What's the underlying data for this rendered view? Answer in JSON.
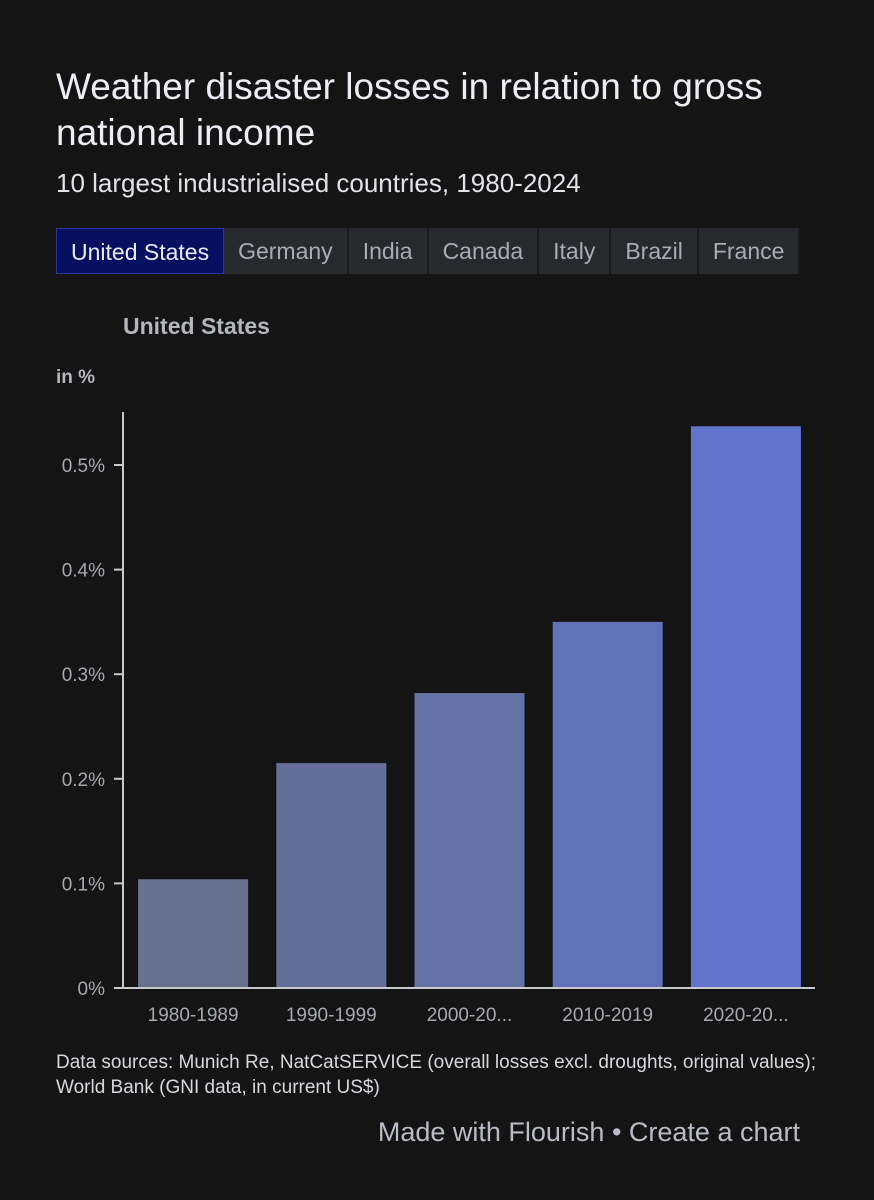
{
  "title": "Weather disaster losses in relation to gross national income",
  "subtitle": "10 largest industrialised countries, 1980-2024",
  "tabs": [
    {
      "label": "United States",
      "active": true
    },
    {
      "label": "Germany",
      "active": false
    },
    {
      "label": "India",
      "active": false
    },
    {
      "label": "Canada",
      "active": false
    },
    {
      "label": "Italy",
      "active": false
    },
    {
      "label": "Brazil",
      "active": false
    },
    {
      "label": "France",
      "active": false
    }
  ],
  "chart_heading": "United States",
  "unit_label": "in %",
  "chart_data": {
    "type": "bar",
    "title": "United States",
    "ylabel": "in %",
    "xlabel": "",
    "categories": [
      "1980-1989",
      "1990-1999",
      "2000-20...",
      "2010-2019",
      "2020-20..."
    ],
    "values": [
      0.104,
      0.215,
      0.282,
      0.35,
      0.537
    ],
    "ylim": [
      0,
      0.55
    ],
    "yticks": [
      0,
      0.1,
      0.2,
      0.3,
      0.4,
      0.5
    ],
    "ytick_labels": [
      "0%",
      "0.1%",
      "0.2%",
      "0.3%",
      "0.4%",
      "0.5%"
    ],
    "bar_colors": [
      "#66708f",
      "#636f98",
      "#6272a4",
      "#6172b6",
      "#6175cc"
    ],
    "grid": false
  },
  "source_text": "Data sources: Munich Re, NatCatSERVICE (overall losses excl. droughts, original values); World Bank (GNI data, in current US$)",
  "credit": {
    "made_with": "Made with Flourish",
    "separator": "•",
    "create": "Create a chart"
  },
  "colors": {
    "background": "#141415",
    "active_tab": "#051060",
    "axis": "#c8c9ce"
  }
}
